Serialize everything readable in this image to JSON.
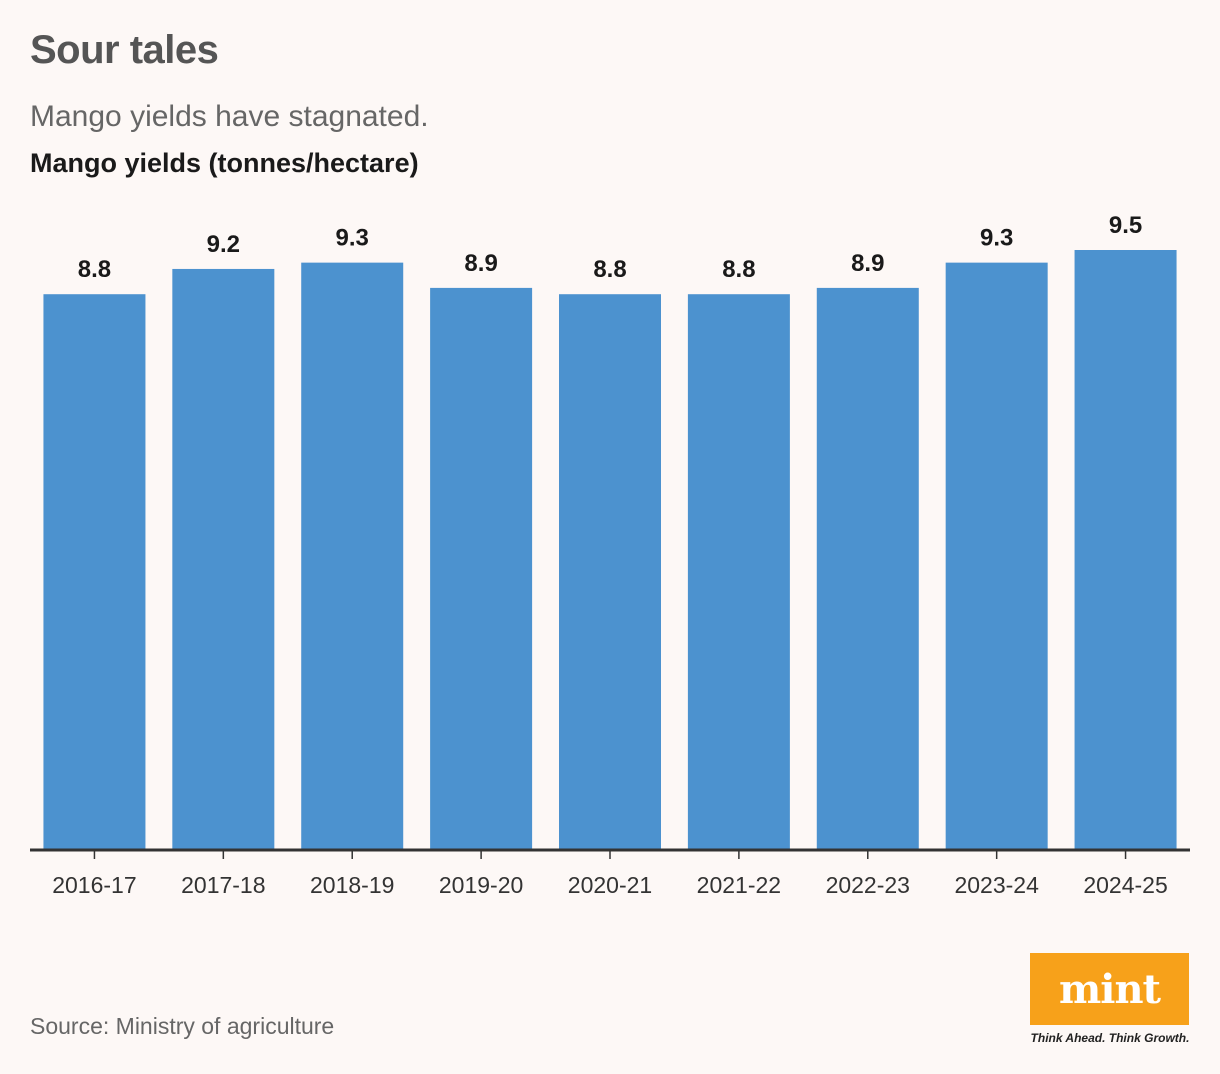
{
  "header": {
    "title": "Sour tales",
    "subtitle": "Mango yields have stagnated."
  },
  "chart_data": {
    "type": "bar",
    "title": "Mango yields (tonnes/hectare)",
    "categories": [
      "2016-17",
      "2017-18",
      "2018-19",
      "2019-20",
      "2020-21",
      "2021-22",
      "2022-23",
      "2023-24",
      "2024-25"
    ],
    "values": [
      8.8,
      9.2,
      9.3,
      8.9,
      8.8,
      8.8,
      8.9,
      9.3,
      9.5
    ],
    "labels": [
      "8.8",
      "9.2",
      "9.3",
      "8.9",
      "8.8",
      "8.8",
      "8.9",
      "9.3",
      "9.5"
    ],
    "ylim": [
      0,
      9.5
    ],
    "grid": false,
    "legend": "none",
    "bar_color": "#4c92cf",
    "axis_color": "#333333"
  },
  "footer": {
    "source": "Source: Ministry of agriculture",
    "logo_text": "mint",
    "tagline": "Think Ahead. Think Growth.",
    "logo_color": "#f7a11a"
  }
}
